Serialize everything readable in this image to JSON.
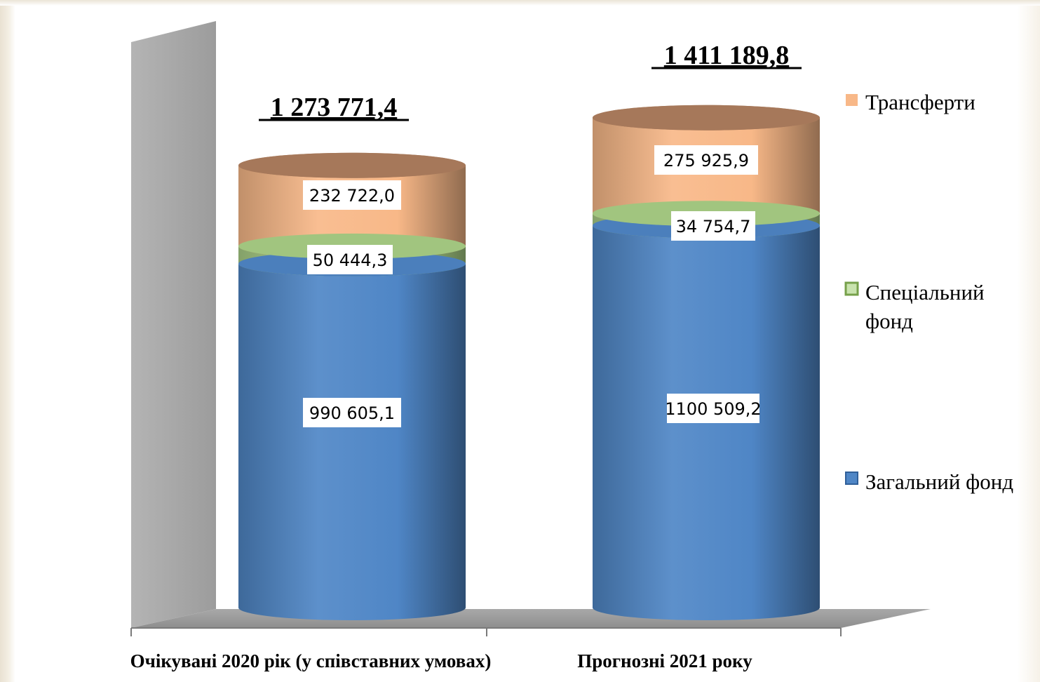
{
  "chart_data": {
    "type": "bar",
    "stacked": true,
    "style": "3d-cylinder",
    "categories": [
      "Очікувані 2020 рік (у співставних умовах)",
      "Прогнозні  2021 року"
    ],
    "totals": [
      "1 273 771,4",
      "1 411 189,8"
    ],
    "series": [
      {
        "name": "Загальний  фонд",
        "values": [
          990605.1,
          1100509.2
        ],
        "labels": [
          "990 605,1",
          "1100  509,2"
        ],
        "color": "#4f86c6"
      },
      {
        "name": "Спеціальний фонд",
        "legend_lines": [
          "Спеціальний",
          "фонд"
        ],
        "values": [
          50444.3,
          34754.7
        ],
        "labels": [
          "50 444,3",
          "34 754,7"
        ],
        "color": "#a9cf86"
      },
      {
        "name": "Трансферти",
        "values": [
          232722.0,
          275925.9
        ],
        "labels": [
          "232 722,0",
          "275 925,9"
        ],
        "color": "#f8b888"
      }
    ],
    "ylim": [
      0,
      1540000
    ],
    "grid": false,
    "legend": "right"
  }
}
